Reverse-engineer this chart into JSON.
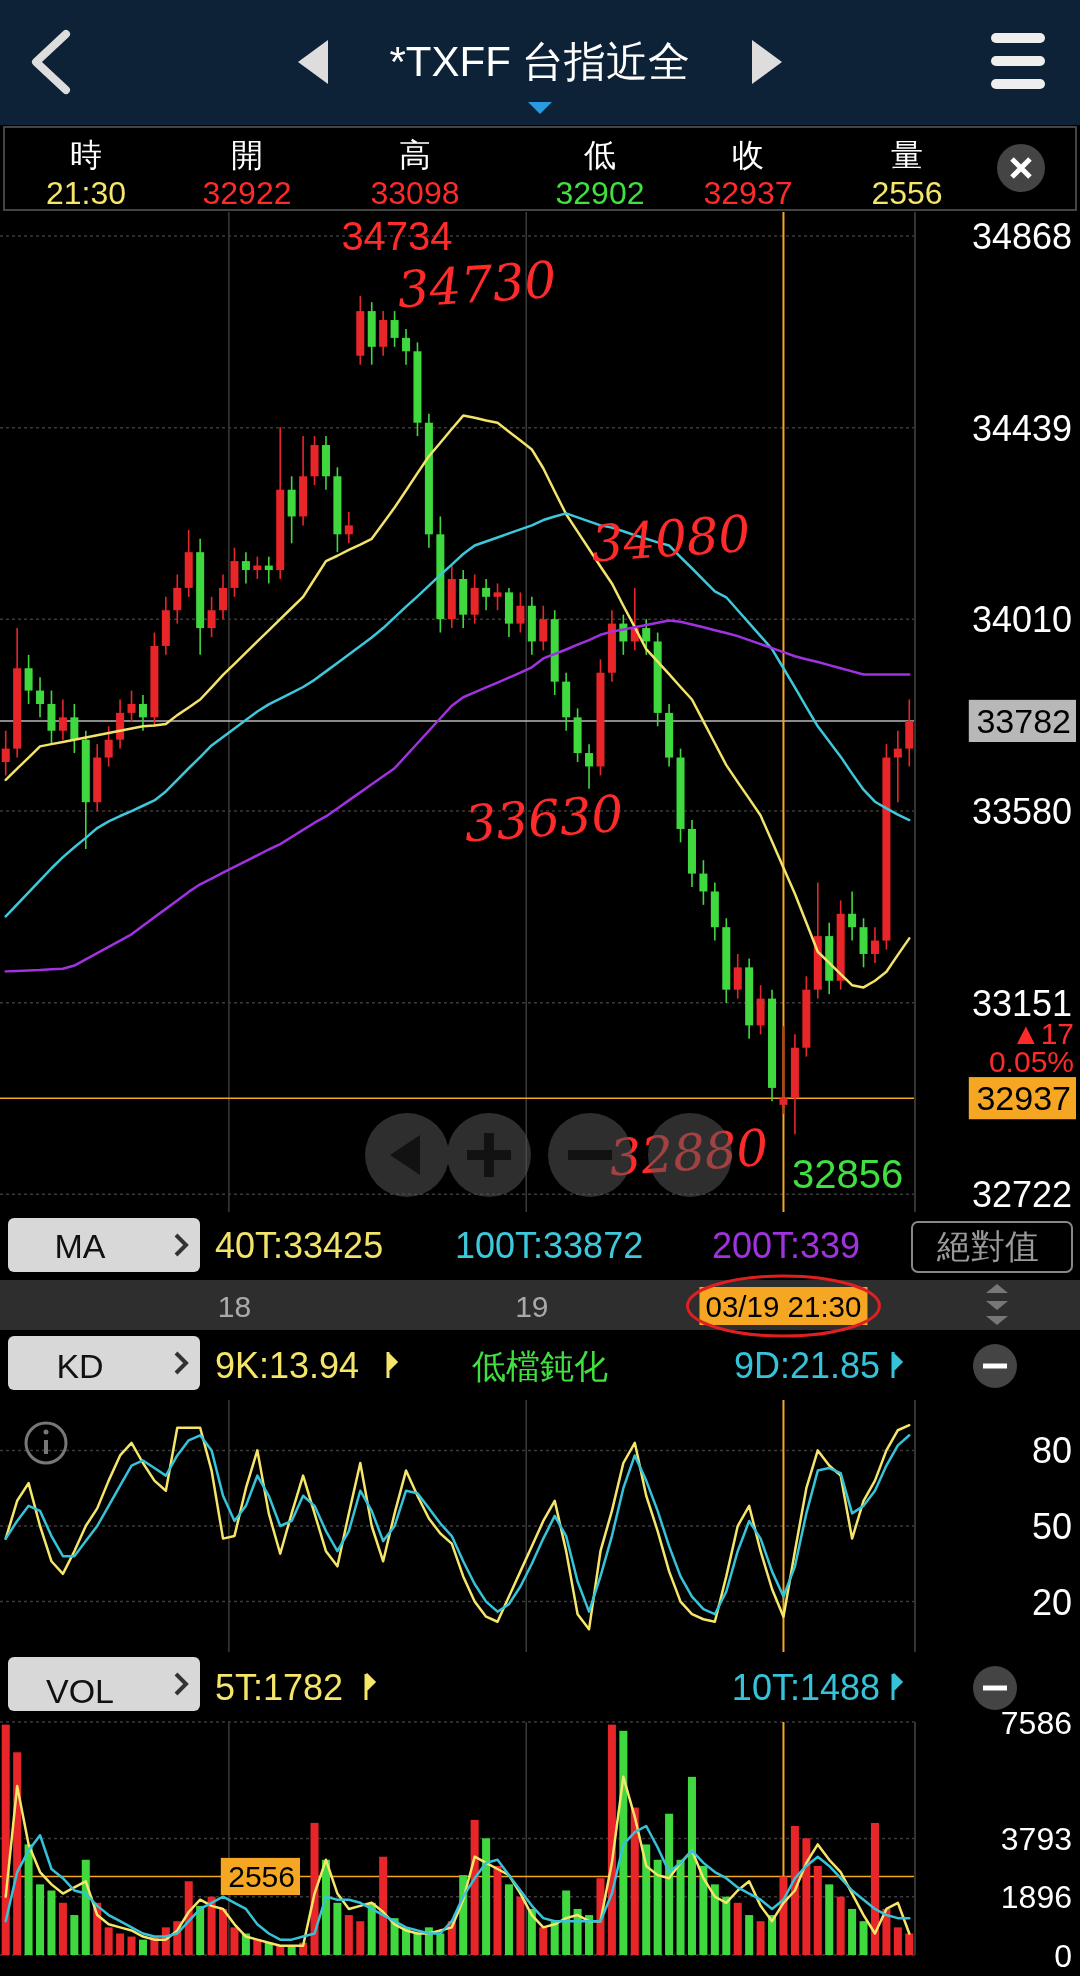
{
  "chart_data": [
    {
      "type": "candlestick",
      "title": "*TXFF 台指近全",
      "categories": [
        null,
        null,
        null,
        null,
        null,
        null,
        null,
        null,
        null,
        null,
        null,
        null,
        null,
        null,
        null,
        null,
        null,
        null,
        null,
        null,
        "18",
        null,
        null,
        null,
        null,
        null,
        null,
        null,
        null,
        null,
        null,
        null,
        null,
        null,
        null,
        null,
        null,
        null,
        null,
        null,
        null,
        null,
        null,
        null,
        null,
        null,
        "19",
        null,
        null,
        null,
        null,
        null,
        null,
        null,
        null,
        null,
        null,
        null,
        null,
        null,
        null,
        null,
        null,
        null,
        null,
        null,
        null,
        null,
        "03/19 21:30",
        null,
        null,
        null,
        null,
        null,
        null,
        null,
        null,
        null,
        null,
        null
      ],
      "ohlc": [
        [
          33690,
          33760,
          33660,
          33720
        ],
        [
          33720,
          33990,
          33700,
          33900
        ],
        [
          33900,
          33930,
          33820,
          33850
        ],
        [
          33850,
          33880,
          33790,
          33820
        ],
        [
          33820,
          33850,
          33730,
          33760
        ],
        [
          33760,
          33830,
          33740,
          33790
        ],
        [
          33790,
          33820,
          33710,
          33740
        ],
        [
          33740,
          33760,
          33495,
          33600
        ],
        [
          33600,
          33730,
          33580,
          33700
        ],
        [
          33700,
          33770,
          33680,
          33740
        ],
        [
          33740,
          33830,
          33720,
          33800
        ],
        [
          33800,
          33850,
          33780,
          33820
        ],
        [
          33820,
          33840,
          33760,
          33790
        ],
        [
          33790,
          33980,
          33770,
          33950
        ],
        [
          33950,
          34060,
          33930,
          34030
        ],
        [
          34030,
          34110,
          34000,
          34080
        ],
        [
          34080,
          34210,
          34060,
          34160
        ],
        [
          34160,
          34190,
          33930,
          33990
        ],
        [
          33990,
          34060,
          33970,
          34030
        ],
        [
          34030,
          34110,
          34010,
          34080
        ],
        [
          34080,
          34170,
          34060,
          34140
        ],
        [
          34140,
          34160,
          34090,
          34120
        ],
        [
          34120,
          34150,
          34100,
          34130
        ],
        [
          34130,
          34150,
          34090,
          34120
        ],
        [
          34120,
          34440,
          34100,
          34300
        ],
        [
          34300,
          34330,
          34180,
          34240
        ],
        [
          34240,
          34420,
          34220,
          34330
        ],
        [
          34330,
          34420,
          34310,
          34400
        ],
        [
          34400,
          34420,
          34300,
          34330
        ],
        [
          34330,
          34350,
          34160,
          34200
        ],
        [
          34200,
          34250,
          34180,
          34220
        ],
        [
          34600,
          34734,
          34580,
          34700
        ],
        [
          34700,
          34720,
          34580,
          34620
        ],
        [
          34620,
          34700,
          34600,
          34680
        ],
        [
          34680,
          34700,
          34620,
          34640
        ],
        [
          34640,
          34660,
          34580,
          34610
        ],
        [
          34610,
          34630,
          34420,
          34450
        ],
        [
          34450,
          34470,
          34170,
          34200
        ],
        [
          34200,
          34240,
          33980,
          34010
        ],
        [
          34010,
          34130,
          33990,
          34100
        ],
        [
          34100,
          34120,
          33990,
          34020
        ],
        [
          34020,
          34110,
          34000,
          34080
        ],
        [
          34080,
          34100,
          34030,
          34060
        ],
        [
          34060,
          34090,
          34030,
          34070
        ],
        [
          34070,
          34080,
          33970,
          34000
        ],
        [
          34000,
          34070,
          33980,
          34040
        ],
        [
          34040,
          34060,
          33930,
          33960
        ],
        [
          33960,
          34040,
          33940,
          34010
        ],
        [
          34010,
          34030,
          33840,
          33870
        ],
        [
          33870,
          33890,
          33760,
          33790
        ],
        [
          33790,
          33810,
          33690,
          33710
        ],
        [
          33710,
          33730,
          33630,
          33680
        ],
        [
          33680,
          33920,
          33660,
          33890
        ],
        [
          33890,
          34030,
          33870,
          34000
        ],
        [
          34000,
          34020,
          33930,
          33960
        ],
        [
          33960,
          34080,
          33940,
          33990
        ],
        [
          33990,
          34010,
          33930,
          33960
        ],
        [
          33960,
          33980,
          33770,
          33800
        ],
        [
          33800,
          33820,
          33680,
          33700
        ],
        [
          33700,
          33720,
          33510,
          33540
        ],
        [
          33540,
          33560,
          33410,
          33440
        ],
        [
          33440,
          33470,
          33370,
          33400
        ],
        [
          33400,
          33420,
          33290,
          33320
        ],
        [
          33320,
          33340,
          33150,
          33180
        ],
        [
          33180,
          33260,
          33160,
          33230
        ],
        [
          33230,
          33250,
          33070,
          33100
        ],
        [
          33100,
          33190,
          33080,
          33160
        ],
        [
          33160,
          33180,
          32930,
          32960
        ],
        [
          32922,
          33098,
          32902,
          32937
        ],
        [
          32937,
          33080,
          32856,
          33050
        ],
        [
          33050,
          33210,
          33030,
          33180
        ],
        [
          33180,
          33420,
          33160,
          33300
        ],
        [
          33300,
          33330,
          33170,
          33200
        ],
        [
          33200,
          33380,
          33180,
          33350
        ],
        [
          33350,
          33400,
          33290,
          33320
        ],
        [
          33320,
          33340,
          33230,
          33260
        ],
        [
          33260,
          33320,
          33240,
          33290
        ],
        [
          33290,
          33730,
          33270,
          33700
        ],
        [
          33700,
          33760,
          33600,
          33720
        ],
        [
          33720,
          33830,
          33680,
          33782
        ]
      ],
      "series": [
        {
          "type": "line",
          "name": "40T:33425",
          "color": "#f2e36a",
          "values": [
            33650,
            33675,
            33700,
            33725,
            33730,
            33735,
            33740,
            33745,
            33750,
            33755,
            33760,
            33765,
            33770,
            33772,
            33775,
            33795,
            33812,
            33830,
            33857,
            33885,
            33910,
            33935,
            33960,
            33985,
            34010,
            34035,
            34060,
            34100,
            34140,
            34152,
            34165,
            34177,
            34190,
            34225,
            34260,
            34298,
            34337,
            34375,
            34405,
            34436,
            34466,
            34461,
            34455,
            34450,
            34430,
            34410,
            34390,
            34348,
            34296,
            34245,
            34206,
            34167,
            34128,
            34090,
            34040,
            33992,
            33943,
            33915,
            33887,
            33858,
            33830,
            33781,
            33732,
            33683,
            33645,
            33608,
            33570,
            33512,
            33453,
            33395,
            33330,
            33265,
            33240,
            33215,
            33190,
            33185,
            33200,
            33220,
            33258,
            33295
          ]
        },
        {
          "type": "line",
          "name": "100T:33872",
          "color": "#3ec8dc",
          "values": [
            33344,
            33371,
            33398,
            33425,
            33452,
            33477,
            33499,
            33520,
            33542,
            33557,
            33569,
            33580,
            33592,
            33604,
            33624,
            33650,
            33676,
            33701,
            33727,
            33746,
            33765,
            33784,
            33803,
            33819,
            33832,
            33845,
            33858,
            33874,
            33893,
            33912,
            33931,
            33950,
            33969,
            33990,
            34014,
            34038,
            34061,
            34085,
            34109,
            34132,
            34156,
            34175,
            34184,
            34193,
            34202,
            34211,
            34220,
            34232,
            34240,
            34247,
            34238,
            34229,
            34220,
            34215,
            34207,
            34198,
            34190,
            34182,
            34175,
            34149,
            34124,
            34098,
            34072,
            34059,
            34030,
            34001,
            33972,
            33943,
            33900,
            33857,
            33813,
            33770,
            33736,
            33702,
            33664,
            33628,
            33601,
            33586,
            33572,
            33560
          ]
        },
        {
          "type": "line",
          "name": "200T:339",
          "color": "#a032e0",
          "values": [
            33221,
            33222,
            33223,
            33224,
            33226,
            33227,
            33234,
            33248,
            33262,
            33276,
            33290,
            33304,
            33323,
            33342,
            33361,
            33380,
            33399,
            33416,
            33429,
            33442,
            33455,
            33468,
            33481,
            33494,
            33506,
            33522,
            33538,
            33554,
            33568,
            33586,
            33604,
            33622,
            33640,
            33658,
            33676,
            33704,
            33732,
            33760,
            33788,
            33816,
            33835,
            33846,
            33857,
            33868,
            33879,
            33890,
            33902,
            33922,
            33932,
            33942,
            33953,
            33963,
            33975,
            33982,
            33987,
            33992,
            33997,
            34002,
            34007,
            34004,
            33998,
            33992,
            33985,
            33979,
            33972,
            33963,
            33954,
            33945,
            33936,
            33927,
            33920,
            33914,
            33907,
            33900,
            33893,
            33886,
            33886,
            33886,
            33886,
            33886
          ]
        }
      ],
      "ylim": [
        32682,
        34922
      ],
      "yticks": [
        34868,
        34439,
        34010,
        33580,
        33151,
        32722
      ],
      "grid": true,
      "legend": "bottom",
      "ref_lines": [
        {
          "axis": "x",
          "value": "03/19 21:30",
          "color": "#f5a623"
        },
        {
          "axis": "y",
          "value": 32937,
          "label": "32937",
          "color": "#f5a623"
        },
        {
          "axis": "y",
          "value": 33782,
          "label": "33782",
          "color": "#b8b8b8"
        }
      ],
      "annotations": [
        "34734",
        "34730",
        "34080",
        "33630",
        "32880",
        "32856",
        "▲17",
        "0.05%",
        "時",
        "21:30",
        "開",
        "32922",
        "高",
        "33098",
        "低",
        "32902",
        "收",
        "32937",
        "量",
        "2556",
        "MA",
        "絕對值"
      ]
    },
    {
      "type": "line",
      "categories": [
        null,
        null,
        null,
        null,
        null,
        null,
        null,
        null,
        null,
        null,
        null,
        null,
        null,
        null,
        null,
        null,
        null,
        null,
        null,
        null,
        "18",
        null,
        null,
        null,
        null,
        null,
        null,
        null,
        null,
        null,
        null,
        null,
        null,
        null,
        null,
        null,
        null,
        null,
        null,
        null,
        null,
        null,
        null,
        null,
        null,
        null,
        "19",
        null,
        null,
        null,
        null,
        null,
        null,
        null,
        null,
        null,
        null,
        null,
        null,
        null,
        null,
        null,
        null,
        null,
        null,
        null,
        null,
        null,
        "03/19 21:30",
        null,
        null,
        null,
        null,
        null,
        null,
        null,
        null,
        null,
        null,
        null
      ],
      "series": [
        {
          "name": "9K:13.94",
          "color": "#f5e66a",
          "values": [
            45,
            60,
            67,
            50,
            36,
            31,
            40,
            50,
            57,
            68,
            78,
            83,
            75,
            68,
            64,
            89,
            89,
            89,
            72,
            45,
            46,
            65,
            80,
            55,
            39,
            55,
            70,
            55,
            40,
            34,
            55,
            75,
            50,
            36,
            55,
            72,
            62,
            53,
            47,
            43,
            30,
            20,
            14,
            12,
            22,
            32,
            42,
            52,
            60,
            40,
            15,
            9,
            40,
            56,
            75,
            83,
            62,
            48,
            32,
            20,
            15,
            13,
            12,
            30,
            50,
            58,
            40,
            25,
            14,
            40,
            65,
            80,
            74,
            70,
            45,
            60,
            68,
            80,
            88,
            90
          ]
        },
        {
          "name": "9D:21.85",
          "color": "#36c3d9",
          "values": [
            45,
            52,
            58,
            56,
            46,
            38,
            38,
            44,
            50,
            58,
            66,
            74,
            76,
            73,
            70,
            78,
            84,
            86,
            80,
            62,
            52,
            58,
            70,
            62,
            50,
            52,
            62,
            58,
            48,
            40,
            48,
            64,
            56,
            44,
            50,
            64,
            63,
            57,
            51,
            46,
            36,
            27,
            20,
            16,
            19,
            26,
            35,
            45,
            54,
            46,
            28,
            16,
            30,
            46,
            65,
            78,
            68,
            56,
            42,
            30,
            22,
            17,
            15,
            24,
            40,
            52,
            45,
            32,
            22,
            34,
            55,
            72,
            73,
            71,
            55,
            58,
            64,
            74,
            82,
            86
          ]
        }
      ],
      "ylim": [
        0,
        100
      ],
      "yticks": [
        20,
        50,
        80
      ],
      "grid": true,
      "legend": "top",
      "tick_labels": "y",
      "ref_lines": [
        {
          "axis": "x",
          "value": "03/19 21:30",
          "color": "#f5a623"
        }
      ],
      "annotations": [
        "KD",
        "低檔鈍化"
      ]
    },
    {
      "type": "bar",
      "categories": [
        null,
        null,
        null,
        null,
        null,
        null,
        null,
        null,
        null,
        null,
        null,
        null,
        null,
        null,
        null,
        null,
        null,
        null,
        null,
        null,
        "18",
        null,
        null,
        null,
        null,
        null,
        null,
        null,
        null,
        null,
        null,
        null,
        null,
        null,
        null,
        null,
        null,
        null,
        null,
        null,
        null,
        null,
        null,
        null,
        null,
        null,
        "19",
        null,
        null,
        null,
        null,
        null,
        null,
        null,
        null,
        null,
        null,
        null,
        null,
        null,
        null,
        null,
        null,
        null,
        null,
        null,
        null,
        null,
        "03/19 21:30",
        null,
        null,
        null,
        null,
        null,
        null,
        null,
        null,
        null,
        null,
        null
      ],
      "series": [
        {
          "values": [
            7500,
            6600,
            3600,
            2300,
            2100,
            1700,
            1300,
            3100,
            1700,
            900,
            700,
            600,
            500,
            600,
            900,
            1100,
            2400,
            1600,
            1900,
            1500,
            900,
            700,
            500,
            400,
            300,
            300,
            400,
            4300,
            3100,
            1700,
            1300,
            1100,
            1700,
            3200,
            1200,
            900,
            700,
            900,
            700,
            1100,
            2600,
            4400,
            3800,
            2900,
            2300,
            1900,
            1500,
            900,
            1100,
            2100,
            1500,
            1300,
            2500,
            7500,
            7300,
            4800,
            3600,
            3100,
            4600,
            3100,
            5800,
            2900,
            2300,
            1900,
            1700,
            1300,
            1100,
            1300,
            2556,
            4200,
            3800,
            2900,
            2300,
            1900,
            1500,
            1100,
            4300,
            1500,
            900,
            700
          ],
          "colors": [
            "#e8262a",
            "#e8262a",
            "#3fd93f",
            "#3fd93f",
            "#3fd93f",
            "#e8262a",
            "#3fd93f",
            "#3fd93f",
            "#e8262a",
            "#e8262a",
            "#e8262a",
            "#e8262a",
            "#3fd93f",
            "#e8262a",
            "#e8262a",
            "#e8262a",
            "#e8262a",
            "#3fd93f",
            "#e8262a",
            "#e8262a",
            "#e8262a",
            "#3fd93f",
            "#e8262a",
            "#3fd93f",
            "#e8262a",
            "#3fd93f",
            "#e8262a",
            "#e8262a",
            "#3fd93f",
            "#3fd93f",
            "#e8262a",
            "#e8262a",
            "#3fd93f",
            "#e8262a",
            "#3fd93f",
            "#3fd93f",
            "#3fd93f",
            "#3fd93f",
            "#3fd93f",
            "#e8262a",
            "#3fd93f",
            "#e8262a",
            "#3fd93f",
            "#e8262a",
            "#3fd93f",
            "#e8262a",
            "#3fd93f",
            "#e8262a",
            "#3fd93f",
            "#3fd93f",
            "#3fd93f",
            "#3fd93f",
            "#e8262a",
            "#e8262a",
            "#3fd93f",
            "#e8262a",
            "#3fd93f",
            "#3fd93f",
            "#3fd93f",
            "#3fd93f",
            "#3fd93f",
            "#3fd93f",
            "#3fd93f",
            "#3fd93f",
            "#e8262a",
            "#3fd93f",
            "#e8262a",
            "#3fd93f",
            "#e8262a",
            "#e8262a",
            "#e8262a",
            "#e8262a",
            "#3fd93f",
            "#e8262a",
            "#3fd93f",
            "#3fd93f",
            "#e8262a",
            "#e8262a",
            "#e8262a",
            "#e8262a"
          ]
        },
        {
          "type": "line",
          "name": "5T:1782",
          "color": "#f5e66a",
          "values": [
            1900,
            5500,
            3600,
            2700,
            2300,
            2000,
            2200,
            2400,
            1300,
            1000,
            900,
            800,
            600,
            500,
            500,
            800,
            1400,
            1800,
            1600,
            1500,
            1000,
            600,
            500,
            400,
            300,
            300,
            300,
            2000,
            3100,
            2000,
            1500,
            1600,
            1700,
            1400,
            1000,
            800,
            700,
            700,
            800,
            900,
            1800,
            3200,
            3000,
            2800,
            2600,
            2000,
            1300,
            900,
            1000,
            1200,
            1300,
            1100,
            1100,
            3000,
            5800,
            4500,
            2900,
            2600,
            2500,
            3000,
            3400,
            2500,
            1900,
            1700,
            2100,
            2400,
            1600,
            1100,
            1700,
            2100,
            3000,
            3600,
            3100,
            2700,
            2000,
            1300,
            700,
            1500,
            1700,
            700
          ]
        },
        {
          "type": "line",
          "name": "10T:1488",
          "color": "#36c3d9",
          "values": [
            1100,
            2700,
            3400,
            3900,
            2800,
            2500,
            2100,
            2000,
            1600,
            1300,
            1100,
            900,
            700,
            600,
            600,
            700,
            1100,
            1500,
            1700,
            1900,
            1700,
            1500,
            1000,
            700,
            500,
            500,
            600,
            700,
            1900,
            1800,
            1800,
            1700,
            1500,
            1300,
            1100,
            900,
            800,
            700,
            700,
            1100,
            1900,
            2500,
            3000,
            3100,
            2600,
            2100,
            1600,
            1200,
            1100,
            1100,
            1100,
            1100,
            1100,
            2000,
            3600,
            4000,
            4200,
            3500,
            2700,
            3000,
            3400,
            3000,
            2700,
            2500,
            2200,
            2000,
            1800,
            1500,
            1800,
            2500,
            2900,
            3200,
            2900,
            2500,
            2100,
            1800,
            1500,
            1300,
            1200,
            1200
          ]
        }
      ],
      "ylim": [
        0,
        7586
      ],
      "yticks": [
        7586,
        3793,
        1896,
        0
      ],
      "grid": true,
      "legend": "top",
      "tick_labels": "y",
      "ref_lines": [
        {
          "axis": "x",
          "value": "03/19 21:30",
          "color": "#f5a623"
        },
        {
          "axis": "y",
          "value": 2556,
          "label": "2556",
          "color": "#f5a623"
        }
      ],
      "annotations": [
        "VOL"
      ]
    }
  ]
}
